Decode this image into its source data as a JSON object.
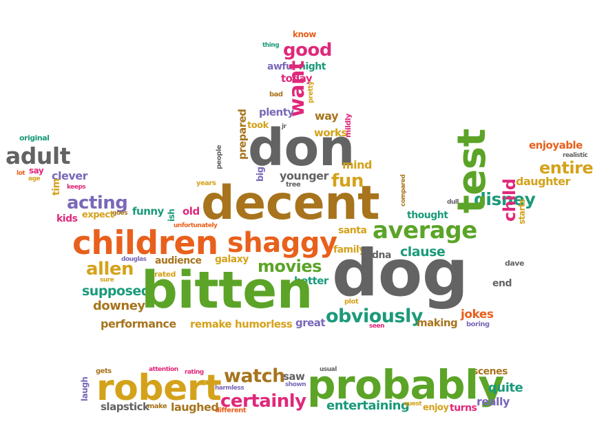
{
  "words": {
    "know": "know",
    "thing": "thing",
    "good": "good",
    "awful": "awful",
    "night": "night",
    "today": "today",
    "bad": "bad",
    "pretty": "pretty",
    "want": "want",
    "way": "way",
    "plenty": "plenty",
    "took": "took",
    "jr": "jr",
    "works": "works",
    "mildly": "mildly",
    "original": "original",
    "prepared": "prepared",
    "people": "people",
    "don": "don",
    "enjoyable": "enjoyable",
    "realistic": "realistic",
    "adult": "adult",
    "mind": "mind",
    "entire": "entire",
    "lot": "lot",
    "say": "say",
    "age": "age",
    "clever": "clever",
    "younger": "younger",
    "tree": "tree",
    "big": "big",
    "years": "years",
    "fun": "fun",
    "compared": "compared",
    "daughter": "daughter",
    "tim": "tim",
    "keeps": "keeps",
    "acting": "acting",
    "decent": "decent",
    "disney": "disney",
    "kids": "kids",
    "expect": "expect",
    "goes": "goes",
    "funny": "funny",
    "ish": "ish",
    "old": "old",
    "thought": "thought",
    "dull": "dull",
    "unfortunately": "unfortunately",
    "santa": "santa",
    "average": "average",
    "test": "test",
    "child": "child",
    "starts": "starts",
    "children": "children",
    "shaggy": "shaggy",
    "family": "family",
    "dna": "dna",
    "clause": "clause",
    "douglas": "douglas",
    "audience": "audience",
    "galaxy": "galaxy",
    "movies": "movies",
    "allen": "allen",
    "sure": "sure",
    "rated": "rated",
    "dog": "dog",
    "dave": "dave",
    "better": "better",
    "end": "end",
    "supposed": "supposed",
    "bitten": "bitten",
    "plot": "plot",
    "downey": "downey",
    "obviously": "obviously",
    "jokes": "jokes",
    "performance": "performance",
    "remake": "remake",
    "humorless": "humorless",
    "great": "great",
    "seen": "seen",
    "making": "making",
    "boring": "boring",
    "gets": "gets",
    "attention": "attention",
    "rating": "rating",
    "watch": "watch",
    "usual": "usual",
    "scenes": "scenes",
    "laugh": "laugh",
    "saw": "saw",
    "shown": "shown",
    "robert": "robert",
    "harmless": "harmless",
    "certainly": "certainly",
    "probably": "probably",
    "quite": "quite",
    "really": "really",
    "entertaining": "entertaining",
    "quest": "quest",
    "enjoy": "enjoy",
    "turns": "turns",
    "slapstick": "slapstick",
    "make": "make",
    "laughed": "laughed",
    "different": "different"
  }
}
